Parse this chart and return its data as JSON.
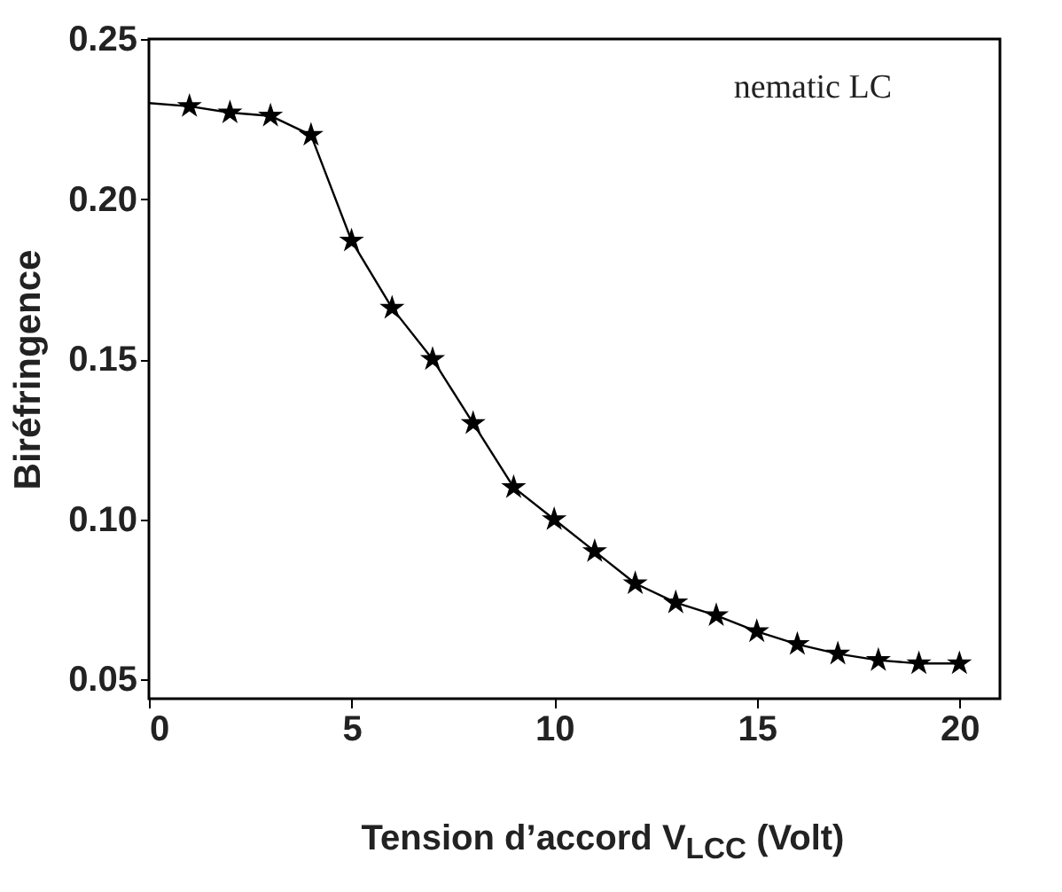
{
  "chart_data": {
    "type": "line",
    "xlabel": "Tension d’accord V$_{LCC}$ (Volt)",
    "ylabel": "Biréfringence",
    "annotations": [
      "nematic LC"
    ],
    "xlim": [
      0,
      21
    ],
    "xticks": [
      0,
      5,
      10,
      15,
      20
    ],
    "ylim": [
      0.044,
      0.25
    ],
    "yticks": [
      0.05,
      {
        "value": 0.1,
        "label": "0.10"
      },
      0.15,
      {
        "value": 0.2,
        "label": "0.20"
      },
      0.25
    ],
    "grid": false,
    "series": [
      {
        "color": "#000000",
        "line_style": "solid",
        "x": [
          0,
          1,
          2,
          3,
          4,
          5,
          6,
          7,
          8,
          9,
          10,
          11,
          12,
          13,
          14,
          15,
          16,
          17,
          18,
          19,
          20
        ],
        "values": [
          0.23,
          0.229,
          0.227,
          0.226,
          0.22,
          0.187,
          0.166,
          0.15,
          0.13,
          0.11,
          0.1,
          0.09,
          0.08,
          0.074,
          0.07,
          0.065,
          0.061,
          0.058,
          0.056,
          0.055,
          0.055
        ]
      },
      {
        "type": "scatter",
        "color": "#000000",
        "marker": "star",
        "x": [
          1,
          2,
          3,
          4,
          5,
          6,
          7,
          8,
          9,
          10,
          11,
          12,
          13,
          14,
          15,
          16,
          17,
          18,
          19,
          20
        ],
        "values": [
          0.229,
          0.227,
          0.226,
          0.22,
          0.187,
          0.166,
          0.15,
          0.13,
          0.11,
          0.1,
          0.09,
          0.08,
          0.074,
          0.07,
          0.065,
          0.061,
          0.058,
          0.056,
          0.055,
          0.055
        ]
      }
    ]
  }
}
